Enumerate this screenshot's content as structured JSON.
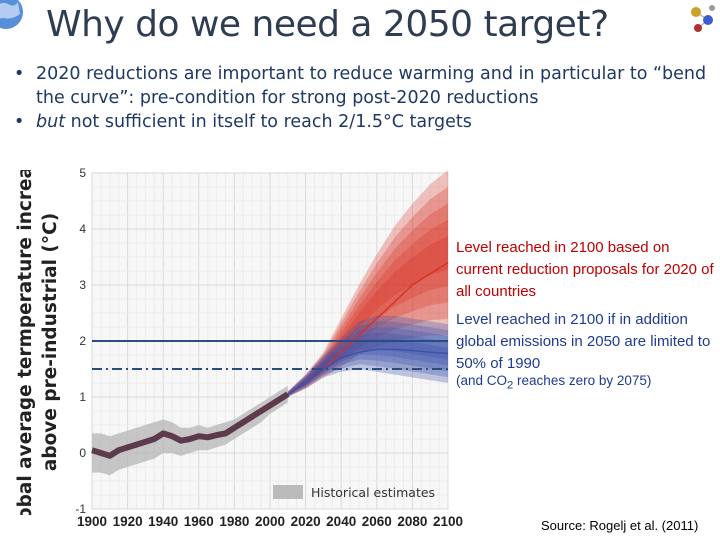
{
  "slide": {
    "title": "Why do we need a 2050 target?",
    "bullets": [
      {
        "marker": "•",
        "parts": [
          {
            "text": "2020 reductions are important to reduce warming and in particular to “bend the curve”: pre-condition for strong post-2020 reductions",
            "italic": false
          }
        ]
      },
      {
        "marker": "•",
        "parts": [
          {
            "text": "but",
            "italic": true
          },
          {
            "text": " not sufficient in itself to reach 2/1.5°C targets",
            "italic": false
          }
        ]
      }
    ],
    "source": "Source: Rogelj et al. (2011)"
  },
  "annotations": {
    "red": "Level reached in 2100 based on current reduction proposals for 2020 of all countries",
    "blue": "Level reached in 2100 if in addition global emissions in 2050 are limited to 50% of 1990",
    "co2_prefix": "(and CO",
    "co2_sub": "2",
    "co2_suffix": " reaches zero by 2075)"
  },
  "colors": {
    "title": "#2f3d52",
    "bullet_text": "#1f3864",
    "red_fan": "#d7301f",
    "blue_fan": "#3a4fa8",
    "history_line": "#4a2236",
    "historical_band": "#b0b0b0",
    "target_line": "#2b4d7e",
    "annotation_red": "#c00000",
    "annotation_blue": "#1f3a93"
  },
  "chart_data": {
    "type": "area",
    "ylabel": "Global average termperature increase above pre-industrial (°C)",
    "xlabel": "",
    "xlim": [
      1900,
      2100
    ],
    "ylim": [
      -1,
      5
    ],
    "x_ticks": [
      1900,
      1920,
      1940,
      1960,
      1980,
      2000,
      2020,
      2040,
      2060,
      2080,
      2100
    ],
    "y_ticks": [
      -1,
      0,
      1,
      2,
      3,
      4,
      5
    ],
    "grid": true,
    "legend": {
      "label": "Historical estimates",
      "placement": "bottom-right"
    },
    "historical": {
      "x": [
        1900,
        1905,
        1910,
        1915,
        1920,
        1925,
        1930,
        1935,
        1940,
        1945,
        1950,
        1955,
        1960,
        1965,
        1970,
        1975,
        1980,
        1985,
        1990,
        1995,
        2000,
        2005,
        2010
      ],
      "y": [
        0.05,
        0.0,
        -0.05,
        0.05,
        0.1,
        0.15,
        0.2,
        0.25,
        0.35,
        0.3,
        0.22,
        0.25,
        0.3,
        0.28,
        0.32,
        0.35,
        0.45,
        0.55,
        0.65,
        0.75,
        0.85,
        0.95,
        1.05
      ],
      "band_low": [
        -0.35,
        -0.35,
        -0.4,
        -0.3,
        -0.25,
        -0.2,
        -0.15,
        -0.1,
        0.0,
        0.0,
        -0.05,
        0.0,
        0.05,
        0.05,
        0.1,
        0.15,
        0.25,
        0.35,
        0.45,
        0.55,
        0.7,
        0.8,
        0.9
      ],
      "band_high": [
        0.35,
        0.35,
        0.3,
        0.35,
        0.4,
        0.45,
        0.5,
        0.55,
        0.6,
        0.55,
        0.45,
        0.45,
        0.5,
        0.45,
        0.5,
        0.55,
        0.6,
        0.7,
        0.8,
        0.9,
        1.0,
        1.1,
        1.2
      ]
    },
    "series": [
      {
        "name": "Level reached in 2100 based on current reduction proposals for 2020 of all countries",
        "x": [
          2010,
          2020,
          2030,
          2040,
          2050,
          2060,
          2070,
          2080,
          2090,
          2100
        ],
        "median": [
          1.05,
          1.25,
          1.5,
          1.8,
          2.1,
          2.4,
          2.7,
          3.0,
          3.2,
          3.4
        ],
        "low": [
          1.0,
          1.15,
          1.35,
          1.55,
          1.75,
          1.9,
          2.0,
          2.05,
          2.1,
          2.1
        ],
        "high": [
          1.1,
          1.4,
          1.8,
          2.4,
          3.0,
          3.55,
          4.05,
          4.45,
          4.8,
          5.05
        ]
      },
      {
        "name": "Level reached in 2100 if in addition global emissions in 2050 are limited to 50% of 1990",
        "x": [
          2010,
          2020,
          2030,
          2040,
          2050,
          2060,
          2070,
          2080,
          2090,
          2100
        ],
        "median": [
          1.05,
          1.25,
          1.5,
          1.7,
          1.8,
          1.85,
          1.85,
          1.83,
          1.8,
          1.78
        ],
        "low": [
          1.0,
          1.15,
          1.35,
          1.45,
          1.5,
          1.45,
          1.4,
          1.35,
          1.3,
          1.25
        ],
        "high": [
          1.1,
          1.4,
          1.75,
          2.05,
          2.35,
          2.45,
          2.45,
          2.4,
          2.35,
          2.3
        ]
      }
    ],
    "reference_lines": [
      {
        "y": 2.0,
        "style": "solid"
      },
      {
        "y": 1.5,
        "style": "dash-dot"
      }
    ]
  }
}
